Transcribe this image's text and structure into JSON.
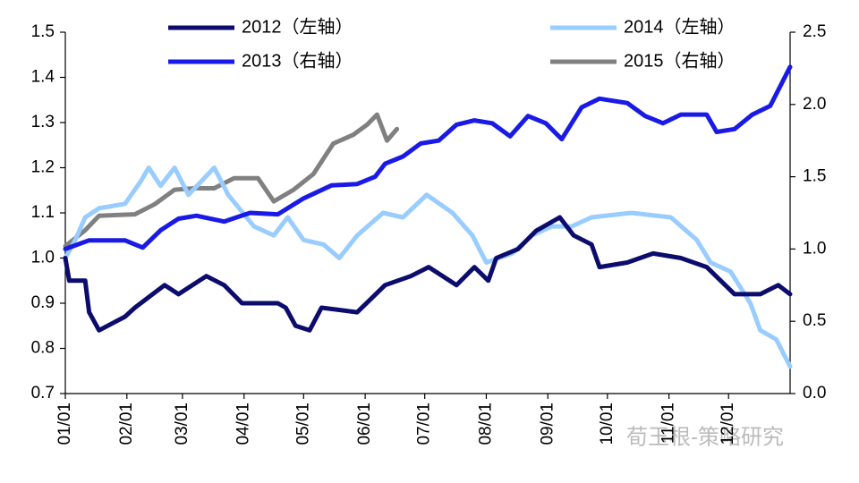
{
  "chart_data": {
    "type": "line",
    "xlim": [
      0,
      365
    ],
    "xticks": [
      {
        "value": 0,
        "label": "01/01"
      },
      {
        "value": 31,
        "label": "02/01"
      },
      {
        "value": 59,
        "label": "03/01"
      },
      {
        "value": 90,
        "label": "04/01"
      },
      {
        "value": 120,
        "label": "05/01"
      },
      {
        "value": 151,
        "label": "06/01"
      },
      {
        "value": 181,
        "label": "07/01"
      },
      {
        "value": 212,
        "label": "08/01"
      },
      {
        "value": 243,
        "label": "09/01"
      },
      {
        "value": 273,
        "label": "10/01"
      },
      {
        "value": 304,
        "label": "11/01"
      },
      {
        "value": 334,
        "label": "12/01"
      }
    ],
    "ylim": [
      0.7,
      1.5
    ],
    "yticks": [
      0.7,
      0.8,
      0.9,
      {
        "value": 1,
        "label": "1.0"
      },
      1.1,
      1.2,
      1.3,
      1.4,
      1.5
    ],
    "y2lim": [
      0,
      2.5
    ],
    "y2ticks": [
      {
        "value": 0,
        "label": "0.0"
      },
      0.5,
      {
        "value": 1,
        "label": "1.0"
      },
      1.5,
      {
        "value": 2,
        "label": "2.0"
      },
      2.5
    ],
    "annotations": [
      "荀玉根-策略研究"
    ],
    "series": [
      {
        "name": "2012（左轴）",
        "color": "#0c0c6e",
        "axis": "y",
        "x": [
          0,
          2,
          10,
          12,
          17,
          30,
          35,
          44,
          50,
          57,
          71,
          80,
          89,
          107,
          111,
          116,
          123,
          129,
          147,
          161,
          174,
          183,
          197,
          206,
          213,
          217,
          228,
          237,
          249,
          256,
          265,
          269,
          283,
          296,
          310,
          323,
          337,
          350,
          359,
          365
        ],
        "values": [
          1.0,
          0.95,
          0.95,
          0.88,
          0.84,
          0.87,
          0.89,
          0.92,
          0.94,
          0.92,
          0.96,
          0.94,
          0.9,
          0.9,
          0.89,
          0.85,
          0.84,
          0.89,
          0.88,
          0.94,
          0.96,
          0.98,
          0.94,
          0.98,
          0.95,
          1.0,
          1.02,
          1.06,
          1.09,
          1.05,
          1.03,
          0.98,
          0.99,
          1.01,
          1.0,
          0.98,
          0.92,
          0.92,
          0.94,
          0.92
        ]
      },
      {
        "name": "2013（右轴）",
        "color": "#1a1ae6",
        "axis": "y2",
        "x": [
          0,
          12,
          30,
          39,
          48,
          57,
          66,
          80,
          93,
          107,
          120,
          134,
          147,
          156,
          161,
          170,
          179,
          188,
          197,
          206,
          215,
          224,
          233,
          242,
          250,
          260,
          269,
          283,
          292,
          301,
          310,
          323,
          328,
          337,
          346,
          355,
          365
        ],
        "values": [
          1.0,
          1.06,
          1.06,
          1.01,
          1.13,
          1.21,
          1.23,
          1.19,
          1.25,
          1.24,
          1.35,
          1.44,
          1.45,
          1.5,
          1.59,
          1.64,
          1.73,
          1.75,
          1.86,
          1.89,
          1.87,
          1.78,
          1.92,
          1.87,
          1.76,
          1.98,
          2.04,
          2.01,
          1.92,
          1.87,
          1.93,
          1.93,
          1.81,
          1.83,
          1.93,
          1.99,
          2.26
        ]
      },
      {
        "name": "2014（左轴）",
        "color": "#99ccff",
        "axis": "y",
        "x": [
          0,
          5,
          10,
          17,
          30,
          38,
          42,
          48,
          55,
          62,
          75,
          82,
          95,
          105,
          112,
          120,
          130,
          138,
          147,
          160,
          170,
          182,
          195,
          205,
          212,
          225,
          235,
          245,
          255,
          265,
          285,
          305,
          318,
          325,
          335,
          345,
          350,
          358,
          365
        ],
        "values": [
          1.0,
          1.04,
          1.09,
          1.11,
          1.12,
          1.17,
          1.2,
          1.16,
          1.2,
          1.14,
          1.2,
          1.14,
          1.07,
          1.05,
          1.09,
          1.04,
          1.03,
          1.0,
          1.05,
          1.1,
          1.09,
          1.14,
          1.1,
          1.05,
          0.99,
          1.01,
          1.05,
          1.07,
          1.07,
          1.09,
          1.1,
          1.09,
          1.04,
          0.99,
          0.97,
          0.9,
          0.84,
          0.82,
          0.76
        ]
      },
      {
        "name": "2015（右轴）",
        "color": "#808080",
        "axis": "y2",
        "x": [
          0,
          10,
          17,
          35,
          45,
          55,
          65,
          75,
          85,
          97,
          105,
          115,
          125,
          135,
          145,
          152,
          157,
          162,
          167
        ],
        "values": [
          1.02,
          1.13,
          1.23,
          1.24,
          1.31,
          1.41,
          1.42,
          1.42,
          1.49,
          1.49,
          1.33,
          1.41,
          1.52,
          1.73,
          1.79,
          1.86,
          1.93,
          1.75,
          1.83
        ]
      }
    ]
  }
}
